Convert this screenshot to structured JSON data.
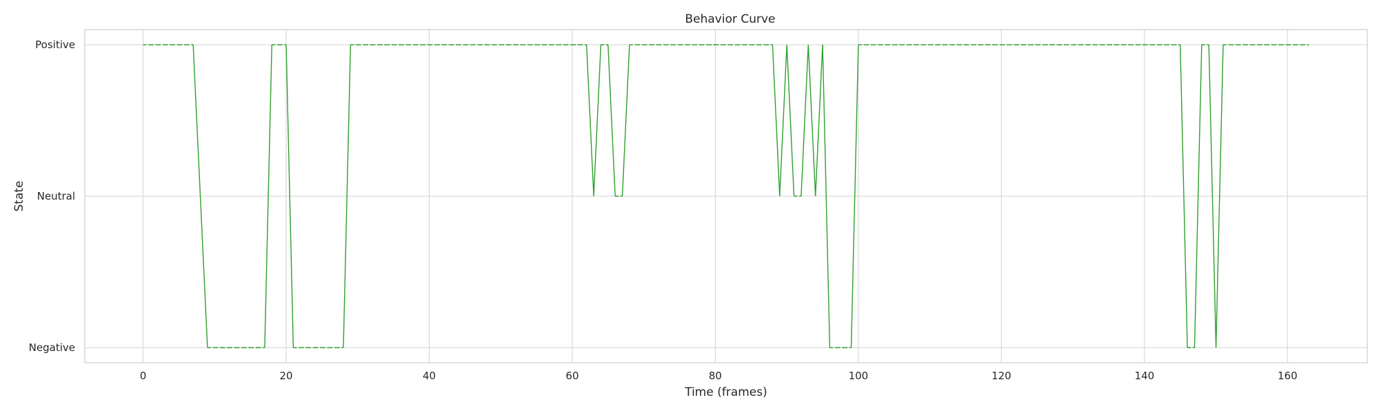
{
  "chart_data": {
    "type": "line",
    "title": "Behavior Curve",
    "xlabel": "Time (frames)",
    "ylabel": "State",
    "xlim": [
      -8.15,
      171.15
    ],
    "ylim": [
      -0.1,
      2.1
    ],
    "x_ticks": [
      0,
      20,
      40,
      60,
      80,
      100,
      120,
      140,
      160
    ],
    "y_ticks": [
      {
        "value": 0,
        "label": "Negative"
      },
      {
        "value": 1,
        "label": "Neutral"
      },
      {
        "value": 2,
        "label": "Positive"
      }
    ],
    "grid": true,
    "series": [
      {
        "color": "#2ca02c",
        "state_runs": [
          {
            "start": 0,
            "end": 7,
            "state": 2
          },
          {
            "start": 8,
            "end": 8,
            "state": 1
          },
          {
            "start": 9,
            "end": 17,
            "state": 0
          },
          {
            "start": 18,
            "end": 20,
            "state": 2
          },
          {
            "start": 21,
            "end": 28,
            "state": 0
          },
          {
            "start": 29,
            "end": 62,
            "state": 2
          },
          {
            "start": 63,
            "end": 63,
            "state": 1
          },
          {
            "start": 64,
            "end": 65,
            "state": 2
          },
          {
            "start": 66,
            "end": 67,
            "state": 1
          },
          {
            "start": 68,
            "end": 88,
            "state": 2
          },
          {
            "start": 89,
            "end": 89,
            "state": 1
          },
          {
            "start": 90,
            "end": 90,
            "state": 2
          },
          {
            "start": 91,
            "end": 92,
            "state": 1
          },
          {
            "start": 93,
            "end": 93,
            "state": 2
          },
          {
            "start": 94,
            "end": 94,
            "state": 1
          },
          {
            "start": 95,
            "end": 95,
            "state": 2
          },
          {
            "start": 96,
            "end": 99,
            "state": 0
          },
          {
            "start": 100,
            "end": 145,
            "state": 2
          },
          {
            "start": 146,
            "end": 147,
            "state": 0
          },
          {
            "start": 148,
            "end": 149,
            "state": 2
          },
          {
            "start": 150,
            "end": 150,
            "state": 0
          },
          {
            "start": 151,
            "end": 163,
            "state": 2
          }
        ]
      }
    ]
  }
}
